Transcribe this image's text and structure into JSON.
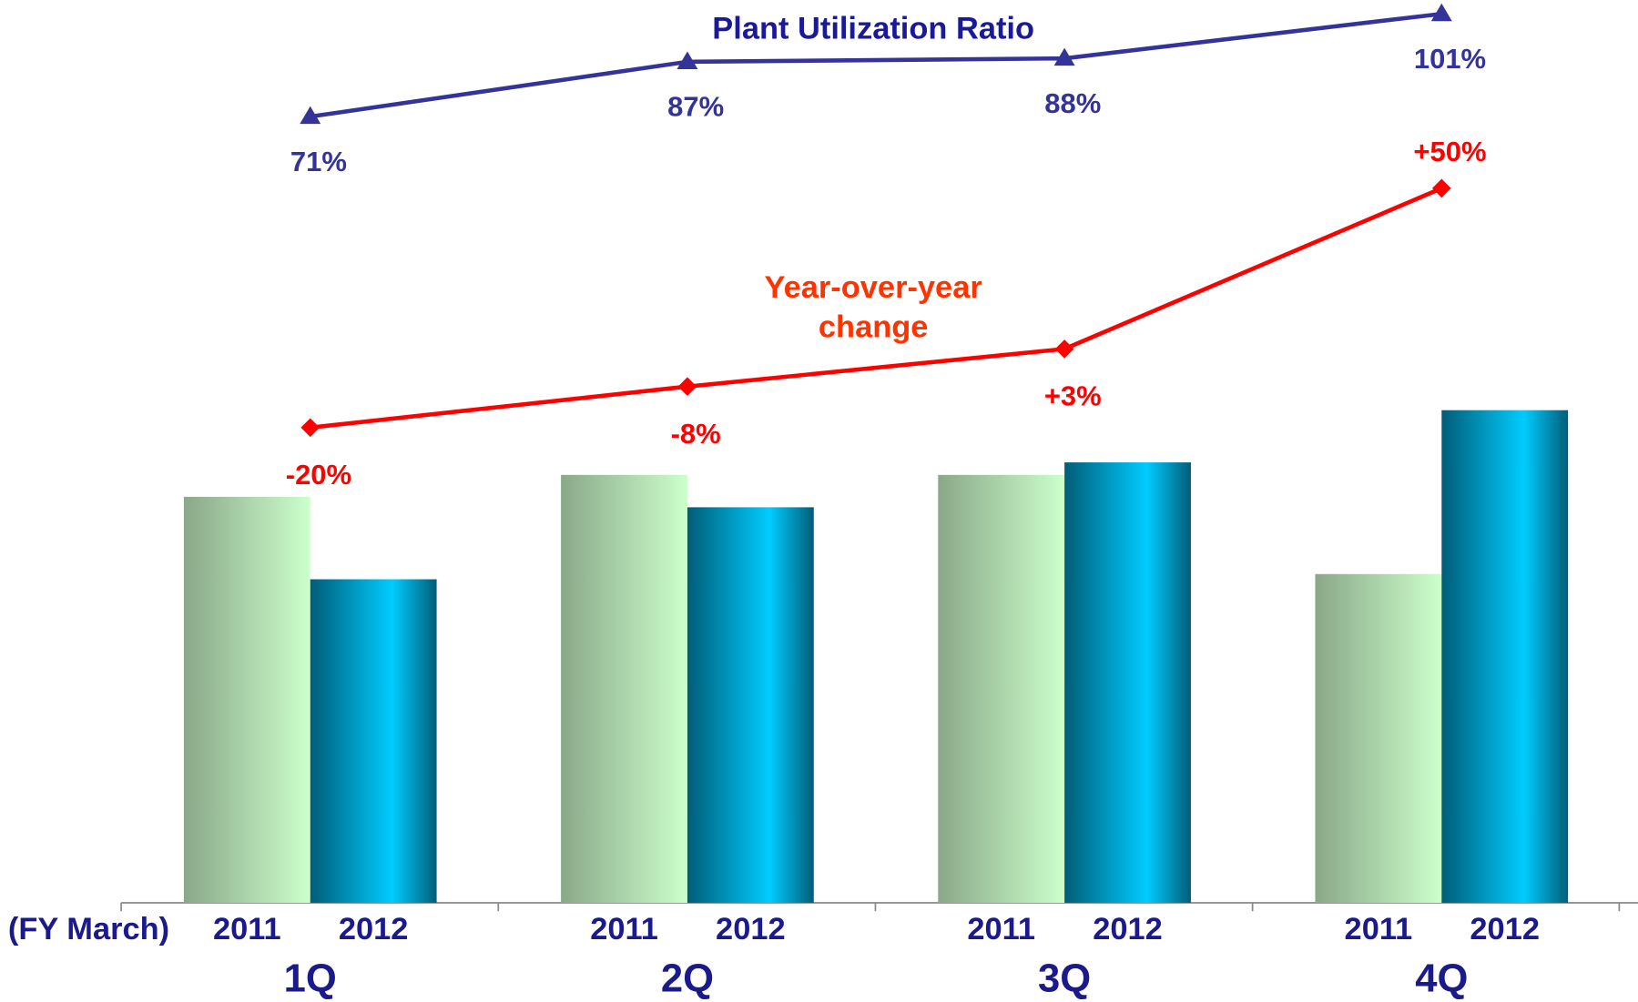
{
  "chart_data": {
    "type": "bar",
    "categories": [
      "1Q",
      "2Q",
      "3Q",
      "4Q"
    ],
    "x_label": "(FY March)",
    "ylim": [
      0,
      500
    ],
    "series": [
      {
        "name": "2011",
        "color": "#ccffcc",
        "values": [
          389,
          410,
          410,
          315
        ]
      },
      {
        "name": "2012",
        "color": "#00ccff",
        "values": [
          310,
          379,
          422,
          472
        ]
      },
      {
        "name": "Plant Utilization Ratio",
        "type": "line",
        "marker": "triangle",
        "color": "#333399",
        "label_color": "#333399",
        "ylim": [
          70,
          102
        ],
        "values": [
          71,
          87,
          88,
          101
        ],
        "value_labels": [
          "71%",
          "87%",
          "88%",
          "101%"
        ]
      },
      {
        "name": "Year-over-year change",
        "type": "line",
        "marker": "diamond",
        "color": "#ff0000",
        "label_color": "#ff0000",
        "ylim": [
          -25,
          55
        ],
        "values": [
          -20,
          -8,
          3,
          50
        ],
        "value_labels": [
          "-20%",
          "-8%",
          "+3%",
          "+50%"
        ]
      }
    ]
  }
}
